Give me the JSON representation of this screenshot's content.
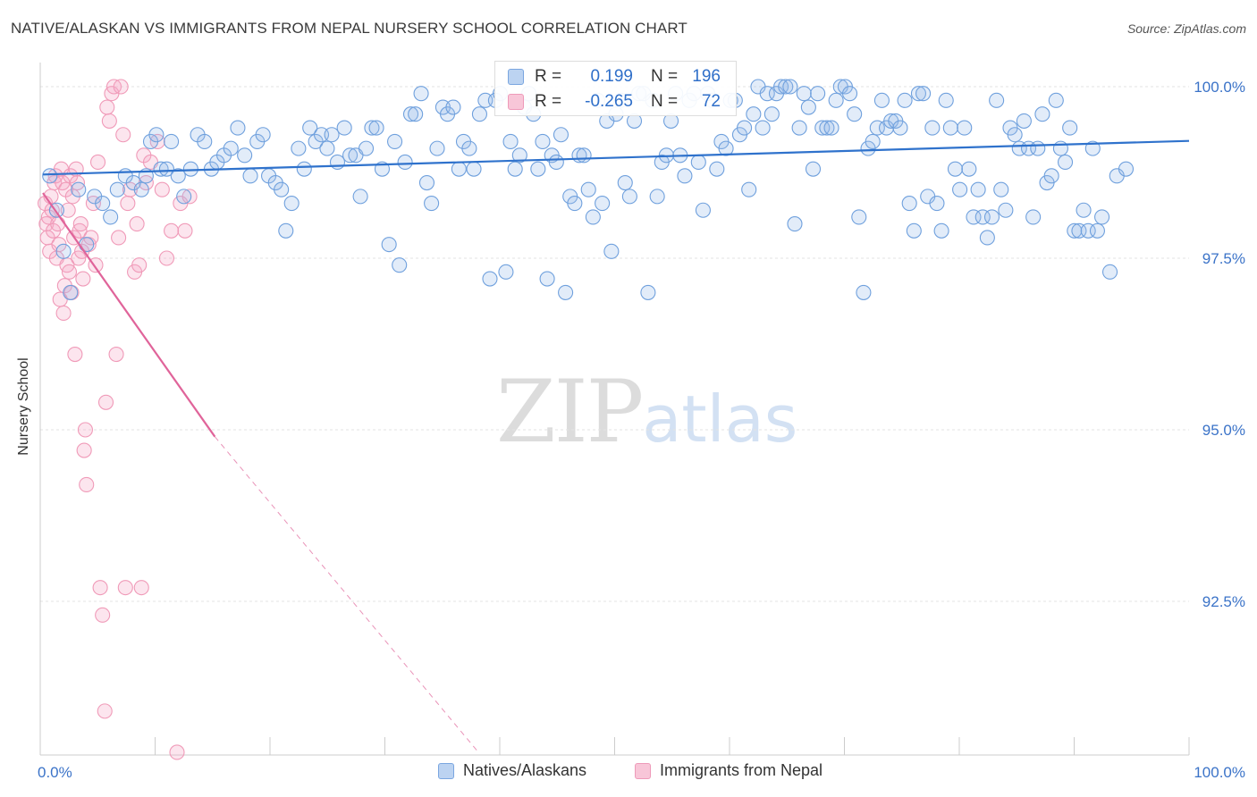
{
  "title": "NATIVE/ALASKAN VS IMMIGRANTS FROM NEPAL NURSERY SCHOOL CORRELATION CHART",
  "source": "Source: ZipAtlas.com",
  "watermark": {
    "zip": "ZIP",
    "atlas": "atlas"
  },
  "legend": {
    "r_label": "R =",
    "n_label": "N =",
    "rows": [
      {
        "r": "0.199",
        "n": "196"
      },
      {
        "r": "-0.265",
        "n": "72"
      }
    ]
  },
  "chart_data": {
    "type": "scatter",
    "title": "NATIVE/ALASKAN VS IMMIGRANTS FROM NEPAL NURSERY SCHOOL CORRELATION CHART",
    "xlabel": "",
    "ylabel": "Nursery School",
    "xlim": [
      0,
      100
    ],
    "ylim": [
      90.3,
      100.4
    ],
    "x_tick_labels": [
      "0.0%",
      "100.0%"
    ],
    "y_ticks": [
      92.5,
      95.0,
      97.5,
      100.0
    ],
    "y_tick_labels": [
      "92.5%",
      "95.0%",
      "97.5%",
      "100.0%"
    ],
    "colors": {
      "blue": "#6fa0dd",
      "blue_line": "#2f72cc",
      "pink": "#f09ab8",
      "pink_line": "#e0649a",
      "tick_text": "#3b73c8"
    },
    "series": [
      {
        "name": "Natives/Alaskans",
        "r": 0.199,
        "n": 196,
        "trend": {
          "x": [
            0,
            100
          ],
          "y": [
            98.72,
            99.21
          ]
        },
        "points": [
          [
            0.6,
            98.7
          ],
          [
            1.2,
            98.2
          ],
          [
            1.8,
            97.6
          ],
          [
            2.4,
            97.0
          ],
          [
            3.1,
            98.5
          ],
          [
            3.8,
            97.7
          ],
          [
            4.5,
            98.4
          ],
          [
            5.2,
            98.3
          ],
          [
            5.9,
            98.1
          ],
          [
            6.5,
            98.5
          ],
          [
            7.2,
            98.7
          ],
          [
            7.9,
            98.6
          ],
          [
            8.6,
            98.5
          ],
          [
            9.0,
            98.7
          ],
          [
            9.4,
            99.2
          ],
          [
            9.9,
            99.3
          ],
          [
            10.3,
            98.8
          ],
          [
            10.8,
            98.8
          ],
          [
            11.2,
            99.2
          ],
          [
            11.8,
            98.7
          ],
          [
            12.3,
            98.4
          ],
          [
            12.9,
            98.8
          ],
          [
            13.5,
            99.3
          ],
          [
            14.1,
            99.2
          ],
          [
            14.7,
            98.8
          ],
          [
            15.2,
            98.9
          ],
          [
            15.8,
            99.0
          ],
          [
            16.4,
            99.1
          ],
          [
            17.0,
            99.4
          ],
          [
            17.6,
            99.0
          ],
          [
            18.1,
            98.7
          ],
          [
            18.7,
            99.2
          ],
          [
            19.2,
            99.3
          ],
          [
            19.7,
            98.7
          ],
          [
            20.3,
            98.6
          ],
          [
            20.8,
            98.5
          ],
          [
            21.2,
            97.9
          ],
          [
            21.7,
            98.3
          ],
          [
            22.3,
            99.1
          ],
          [
            22.8,
            98.8
          ],
          [
            23.3,
            99.4
          ],
          [
            23.8,
            99.2
          ],
          [
            24.3,
            99.3
          ],
          [
            24.8,
            99.1
          ],
          [
            25.2,
            99.3
          ],
          [
            25.7,
            98.9
          ],
          [
            26.3,
            99.4
          ],
          [
            26.8,
            99.0
          ],
          [
            27.3,
            99.0
          ],
          [
            27.7,
            98.4
          ],
          [
            28.2,
            99.1
          ],
          [
            28.7,
            99.4
          ],
          [
            29.1,
            99.4
          ],
          [
            29.6,
            98.8
          ],
          [
            30.2,
            97.7
          ],
          [
            30.7,
            99.2
          ],
          [
            31.1,
            97.4
          ],
          [
            31.6,
            98.9
          ],
          [
            32.1,
            99.6
          ],
          [
            32.5,
            99.6
          ],
          [
            33.0,
            99.9
          ],
          [
            33.5,
            98.6
          ],
          [
            33.9,
            98.3
          ],
          [
            34.4,
            99.1
          ],
          [
            34.9,
            99.7
          ],
          [
            35.3,
            99.6
          ],
          [
            35.8,
            99.7
          ],
          [
            36.3,
            98.8
          ],
          [
            36.7,
            99.2
          ],
          [
            37.2,
            99.1
          ],
          [
            37.6,
            98.8
          ],
          [
            38.1,
            99.6
          ],
          [
            38.6,
            99.8
          ],
          [
            39.0,
            97.2
          ],
          [
            39.5,
            99.8
          ],
          [
            39.9,
            99.9
          ],
          [
            40.4,
            97.3
          ],
          [
            40.8,
            99.2
          ],
          [
            41.2,
            98.8
          ],
          [
            41.6,
            99.0
          ],
          [
            42.0,
            99.7
          ],
          [
            42.4,
            99.9
          ],
          [
            42.8,
            99.6
          ],
          [
            43.2,
            98.8
          ],
          [
            43.6,
            99.2
          ],
          [
            44.0,
            97.2
          ],
          [
            44.4,
            99.0
          ],
          [
            44.8,
            98.9
          ],
          [
            45.2,
            99.3
          ],
          [
            45.6,
            97.0
          ],
          [
            46.0,
            98.4
          ],
          [
            46.4,
            98.3
          ],
          [
            46.8,
            99.0
          ],
          [
            47.2,
            99.0
          ],
          [
            47.6,
            98.5
          ],
          [
            48.0,
            98.1
          ],
          [
            48.4,
            99.8
          ],
          [
            48.8,
            98.3
          ],
          [
            49.2,
            99.5
          ],
          [
            49.6,
            97.6
          ],
          [
            50.0,
            99.6
          ],
          [
            50.4,
            99.8
          ],
          [
            50.8,
            98.6
          ],
          [
            51.2,
            98.4
          ],
          [
            51.6,
            99.5
          ],
          [
            52.0,
            99.9
          ],
          [
            52.4,
            99.9
          ],
          [
            52.8,
            97.0
          ],
          [
            53.2,
            99.8
          ],
          [
            53.6,
            98.4
          ],
          [
            54.0,
            98.9
          ],
          [
            54.4,
            99.0
          ],
          [
            54.8,
            99.5
          ],
          [
            55.2,
            99.9
          ],
          [
            55.6,
            99.0
          ],
          [
            56.0,
            98.7
          ],
          [
            56.4,
            99.8
          ],
          [
            56.8,
            99.9
          ],
          [
            57.2,
            98.9
          ],
          [
            57.6,
            98.2
          ],
          [
            58.0,
            99.9
          ],
          [
            58.4,
            99.8
          ],
          [
            58.8,
            98.8
          ],
          [
            59.2,
            99.2
          ],
          [
            59.6,
            99.1
          ],
          [
            60.0,
            99.8
          ],
          [
            60.4,
            99.8
          ],
          [
            60.8,
            99.3
          ],
          [
            61.2,
            99.4
          ],
          [
            61.6,
            98.5
          ],
          [
            62.0,
            99.6
          ],
          [
            62.4,
            100.0
          ],
          [
            62.8,
            99.4
          ],
          [
            63.2,
            99.9
          ],
          [
            63.6,
            99.6
          ],
          [
            64.0,
            99.9
          ],
          [
            64.4,
            100.0
          ],
          [
            64.8,
            100.0
          ],
          [
            65.2,
            100.0
          ],
          [
            65.6,
            98.0
          ],
          [
            66.0,
            99.4
          ],
          [
            66.4,
            99.9
          ],
          [
            66.8,
            99.7
          ],
          [
            67.2,
            98.8
          ],
          [
            67.6,
            99.9
          ],
          [
            68.0,
            99.4
          ],
          [
            68.4,
            99.4
          ],
          [
            68.8,
            99.4
          ],
          [
            69.2,
            99.8
          ],
          [
            69.6,
            100.0
          ],
          [
            70.0,
            100.0
          ],
          [
            70.4,
            99.9
          ],
          [
            70.8,
            99.6
          ],
          [
            71.2,
            98.1
          ],
          [
            71.6,
            97.0
          ],
          [
            72.0,
            99.1
          ],
          [
            72.4,
            99.2
          ],
          [
            72.8,
            99.4
          ],
          [
            73.2,
            99.8
          ],
          [
            73.6,
            99.4
          ],
          [
            74.0,
            99.5
          ],
          [
            74.4,
            99.5
          ],
          [
            74.8,
            99.4
          ],
          [
            75.2,
            99.8
          ],
          [
            75.6,
            98.3
          ],
          [
            76.0,
            97.9
          ],
          [
            76.4,
            99.9
          ],
          [
            76.8,
            99.9
          ],
          [
            77.2,
            98.4
          ],
          [
            77.6,
            99.4
          ],
          [
            78.0,
            98.3
          ],
          [
            78.4,
            97.9
          ],
          [
            78.8,
            99.8
          ],
          [
            79.2,
            99.4
          ],
          [
            79.6,
            98.8
          ],
          [
            80.0,
            98.5
          ],
          [
            80.4,
            99.4
          ],
          [
            80.8,
            98.8
          ],
          [
            81.2,
            98.1
          ],
          [
            81.6,
            98.5
          ],
          [
            82.0,
            98.1
          ],
          [
            82.4,
            97.8
          ],
          [
            82.8,
            98.1
          ],
          [
            83.2,
            99.8
          ],
          [
            83.6,
            98.5
          ],
          [
            84.0,
            98.2
          ],
          [
            84.4,
            99.4
          ],
          [
            84.8,
            99.3
          ],
          [
            85.2,
            99.1
          ],
          [
            85.6,
            99.5
          ],
          [
            86.0,
            99.1
          ],
          [
            86.4,
            98.1
          ],
          [
            86.8,
            99.1
          ],
          [
            87.2,
            99.6
          ],
          [
            87.6,
            98.6
          ],
          [
            88.0,
            98.7
          ],
          [
            88.4,
            99.8
          ],
          [
            88.8,
            99.1
          ],
          [
            89.2,
            98.9
          ],
          [
            89.6,
            99.4
          ],
          [
            90.0,
            97.9
          ],
          [
            90.4,
            97.9
          ],
          [
            90.8,
            98.2
          ],
          [
            91.2,
            97.9
          ],
          [
            91.6,
            99.1
          ],
          [
            92.0,
            97.9
          ],
          [
            92.4,
            98.1
          ],
          [
            93.1,
            97.3
          ],
          [
            93.7,
            98.7
          ],
          [
            94.5,
            98.8
          ]
        ]
      },
      {
        "name": "Immigrants from Nepal",
        "r": -0.265,
        "n": 72,
        "trend": {
          "x": [
            0,
            15
          ],
          "y": [
            98.45,
            94.9
          ]
        },
        "trend_dashed": {
          "x": [
            15,
            38
          ],
          "y": [
            94.9,
            90.3
          ]
        },
        "points": [
          [
            0.2,
            98.3
          ],
          [
            0.3,
            98.0
          ],
          [
            0.4,
            97.8
          ],
          [
            0.5,
            98.1
          ],
          [
            0.6,
            97.6
          ],
          [
            0.7,
            98.4
          ],
          [
            0.8,
            98.2
          ],
          [
            0.9,
            97.9
          ],
          [
            1.0,
            98.6
          ],
          [
            1.1,
            98.7
          ],
          [
            1.2,
            97.5
          ],
          [
            1.3,
            98.0
          ],
          [
            1.4,
            97.7
          ],
          [
            1.5,
            96.9
          ],
          [
            1.6,
            98.8
          ],
          [
            1.7,
            98.6
          ],
          [
            1.8,
            96.7
          ],
          [
            1.9,
            97.1
          ],
          [
            2.0,
            98.5
          ],
          [
            2.1,
            97.4
          ],
          [
            2.2,
            98.2
          ],
          [
            2.3,
            97.3
          ],
          [
            2.4,
            98.7
          ],
          [
            2.5,
            97.0
          ],
          [
            2.6,
            98.4
          ],
          [
            2.7,
            97.8
          ],
          [
            2.8,
            96.1
          ],
          [
            2.9,
            98.8
          ],
          [
            3.0,
            98.6
          ],
          [
            3.1,
            97.5
          ],
          [
            3.2,
            97.9
          ],
          [
            3.3,
            98.0
          ],
          [
            3.4,
            97.6
          ],
          [
            3.5,
            97.2
          ],
          [
            3.6,
            94.7
          ],
          [
            3.7,
            95.0
          ],
          [
            3.8,
            94.2
          ],
          [
            4.0,
            97.7
          ],
          [
            4.2,
            97.8
          ],
          [
            4.4,
            98.3
          ],
          [
            4.6,
            97.4
          ],
          [
            4.8,
            98.9
          ],
          [
            5.0,
            92.7
          ],
          [
            5.2,
            92.3
          ],
          [
            5.4,
            90.9
          ],
          [
            5.5,
            95.4
          ],
          [
            5.6,
            99.7
          ],
          [
            5.8,
            99.5
          ],
          [
            6.0,
            99.9
          ],
          [
            6.2,
            100.0
          ],
          [
            6.4,
            96.1
          ],
          [
            6.6,
            97.8
          ],
          [
            6.8,
            100.0
          ],
          [
            7.0,
            99.3
          ],
          [
            7.2,
            92.7
          ],
          [
            7.4,
            98.3
          ],
          [
            7.6,
            98.5
          ],
          [
            8.0,
            97.3
          ],
          [
            8.2,
            98.0
          ],
          [
            8.4,
            97.4
          ],
          [
            8.6,
            92.7
          ],
          [
            8.8,
            99.0
          ],
          [
            9.0,
            98.6
          ],
          [
            9.4,
            98.9
          ],
          [
            10.0,
            99.2
          ],
          [
            10.4,
            98.5
          ],
          [
            10.8,
            97.5
          ],
          [
            11.2,
            97.9
          ],
          [
            11.7,
            90.3
          ],
          [
            12.0,
            98.3
          ],
          [
            12.4,
            97.9
          ],
          [
            12.8,
            98.4
          ]
        ]
      }
    ]
  }
}
